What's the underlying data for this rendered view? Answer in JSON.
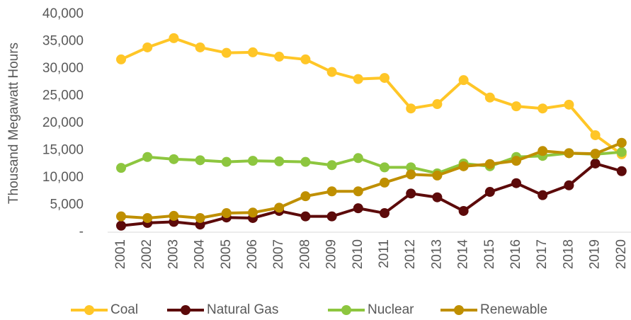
{
  "chart_data": {
    "type": "line",
    "ylabel": "Thousand Megawatt Hours",
    "categories": [
      "2001",
      "2002",
      "2003",
      "2004",
      "2005",
      "2006",
      "2007",
      "2008",
      "2009",
      "2010",
      "2011",
      "2012",
      "2013",
      "2014",
      "2015",
      "2016",
      "2017",
      "2018",
      "2019",
      "2020"
    ],
    "series": [
      {
        "name": "Coal",
        "color": "#ffc627",
        "values": [
          31700,
          33900,
          35600,
          33900,
          32900,
          33000,
          32200,
          31700,
          29400,
          28100,
          28300,
          22700,
          23500,
          27900,
          24700,
          23100,
          22700,
          23400,
          17800,
          14300
        ]
      },
      {
        "name": "Natural Gas",
        "color": "#5c0a0a",
        "values": [
          1200,
          1700,
          1900,
          1400,
          2700,
          2600,
          3900,
          2900,
          2900,
          4400,
          3500,
          7100,
          6400,
          3900,
          7400,
          9000,
          6800,
          8600,
          12600,
          11200
        ]
      },
      {
        "name": "Nuclear",
        "color": "#8dc63f",
        "values": [
          11800,
          13800,
          13400,
          13200,
          12900,
          13100,
          13000,
          12900,
          12300,
          13600,
          11900,
          11900,
          10800,
          12600,
          12100,
          13800,
          14000,
          14500,
          14300,
          14700
        ]
      },
      {
        "name": "Renewable",
        "color": "#bf8f00",
        "values": [
          2900,
          2600,
          3000,
          2600,
          3500,
          3600,
          4500,
          6600,
          7500,
          7500,
          9100,
          10600,
          10400,
          12100,
          12500,
          13100,
          14900,
          14500,
          14400,
          16400
        ]
      }
    ],
    "ylim": [
      0,
      40000
    ],
    "yticks": [
      {
        "value": 0,
        "label": "-"
      },
      {
        "value": 5000,
        "label": "5,000"
      },
      {
        "value": 10000,
        "label": "10,000"
      },
      {
        "value": 15000,
        "label": "15,000"
      },
      {
        "value": 20000,
        "label": "20,000"
      },
      {
        "value": 25000,
        "label": "25,000"
      },
      {
        "value": 30000,
        "label": "30,000"
      },
      {
        "value": 35000,
        "label": "35,000"
      },
      {
        "value": 40000,
        "label": "40,000"
      }
    ],
    "grid": false,
    "legend": "bottom"
  }
}
